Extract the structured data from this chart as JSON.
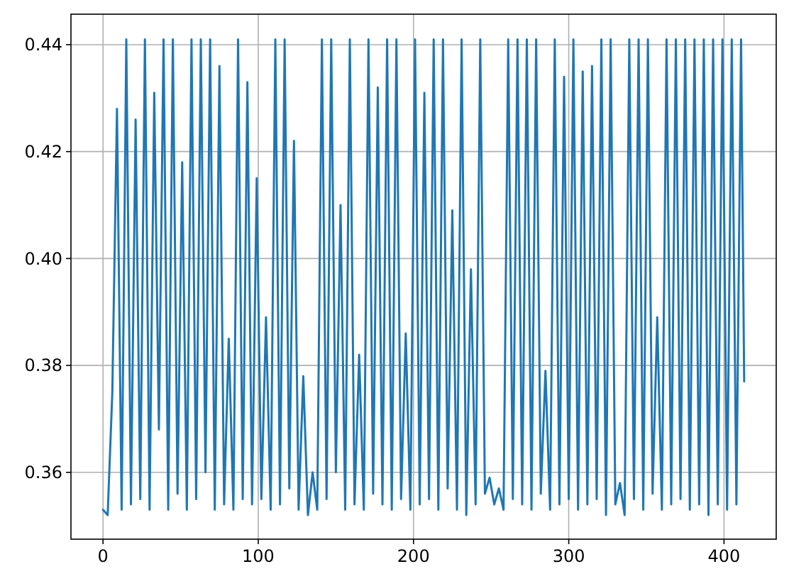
{
  "chart_data": {
    "type": "line",
    "x": [
      0,
      3,
      6,
      9,
      12,
      15,
      18,
      21,
      24,
      27,
      30,
      33,
      36,
      39,
      42,
      45,
      48,
      51,
      54,
      57,
      60,
      63,
      66,
      69,
      72,
      75,
      78,
      81,
      84,
      87,
      90,
      93,
      96,
      99,
      102,
      105,
      108,
      111,
      114,
      117,
      120,
      123,
      126,
      129,
      132,
      135,
      138,
      141,
      144,
      147,
      150,
      153,
      156,
      159,
      162,
      165,
      168,
      171,
      174,
      177,
      180,
      183,
      186,
      189,
      192,
      195,
      198,
      201,
      204,
      207,
      210,
      213,
      216,
      219,
      222,
      225,
      228,
      231,
      234,
      237,
      240,
      243,
      246,
      249,
      252,
      255,
      258,
      261,
      264,
      267,
      270,
      273,
      276,
      279,
      282,
      285,
      288,
      291,
      294,
      297,
      300,
      303,
      306,
      309,
      312,
      315,
      318,
      321,
      324,
      327,
      330,
      333,
      336,
      339,
      342,
      345,
      348,
      351,
      354,
      357,
      360,
      363,
      366,
      369,
      372,
      375,
      378,
      381,
      384,
      387,
      390,
      393,
      396,
      399,
      402,
      405,
      408,
      411,
      413
    ],
    "series": [
      {
        "color": "#1f77b4",
        "values": [
          0.353,
          0.352,
          0.375,
          0.428,
          0.353,
          0.441,
          0.354,
          0.426,
          0.355,
          0.441,
          0.353,
          0.431,
          0.368,
          0.441,
          0.353,
          0.441,
          0.356,
          0.418,
          0.353,
          0.441,
          0.355,
          0.441,
          0.36,
          0.441,
          0.353,
          0.436,
          0.354,
          0.385,
          0.353,
          0.441,
          0.355,
          0.433,
          0.354,
          0.415,
          0.355,
          0.389,
          0.353,
          0.441,
          0.354,
          0.441,
          0.357,
          0.422,
          0.353,
          0.378,
          0.352,
          0.36,
          0.353,
          0.441,
          0.355,
          0.441,
          0.36,
          0.41,
          0.353,
          0.441,
          0.354,
          0.382,
          0.353,
          0.441,
          0.356,
          0.432,
          0.354,
          0.441,
          0.353,
          0.441,
          0.355,
          0.386,
          0.353,
          0.441,
          0.354,
          0.431,
          0.355,
          0.441,
          0.353,
          0.441,
          0.357,
          0.409,
          0.353,
          0.441,
          0.352,
          0.398,
          0.354,
          0.441,
          0.356,
          0.359,
          0.354,
          0.357,
          0.353,
          0.441,
          0.355,
          0.441,
          0.354,
          0.441,
          0.353,
          0.441,
          0.356,
          0.379,
          0.353,
          0.441,
          0.354,
          0.434,
          0.355,
          0.441,
          0.353,
          0.435,
          0.354,
          0.436,
          0.355,
          0.441,
          0.352,
          0.441,
          0.354,
          0.358,
          0.352,
          0.441,
          0.355,
          0.441,
          0.353,
          0.441,
          0.356,
          0.389,
          0.353,
          0.441,
          0.354,
          0.441,
          0.355,
          0.441,
          0.353,
          0.441,
          0.354,
          0.441,
          0.352,
          0.441,
          0.354,
          0.441,
          0.353,
          0.441,
          0.354,
          0.441,
          0.377
        ]
      }
    ],
    "xlim": [
      -20.65,
      433.65
    ],
    "ylim": [
      0.3475,
      0.4457
    ],
    "xticks": [
      0,
      100,
      200,
      300,
      400
    ],
    "yticks": [
      {
        "value": 0.36,
        "label": "0.36"
      },
      {
        "value": 0.38,
        "label": "0.38"
      },
      {
        "value": 0.4,
        "label": "0.40"
      },
      {
        "value": 0.42,
        "label": "0.42"
      },
      {
        "value": 0.44,
        "label": "0.44"
      }
    ],
    "grid": true
  }
}
